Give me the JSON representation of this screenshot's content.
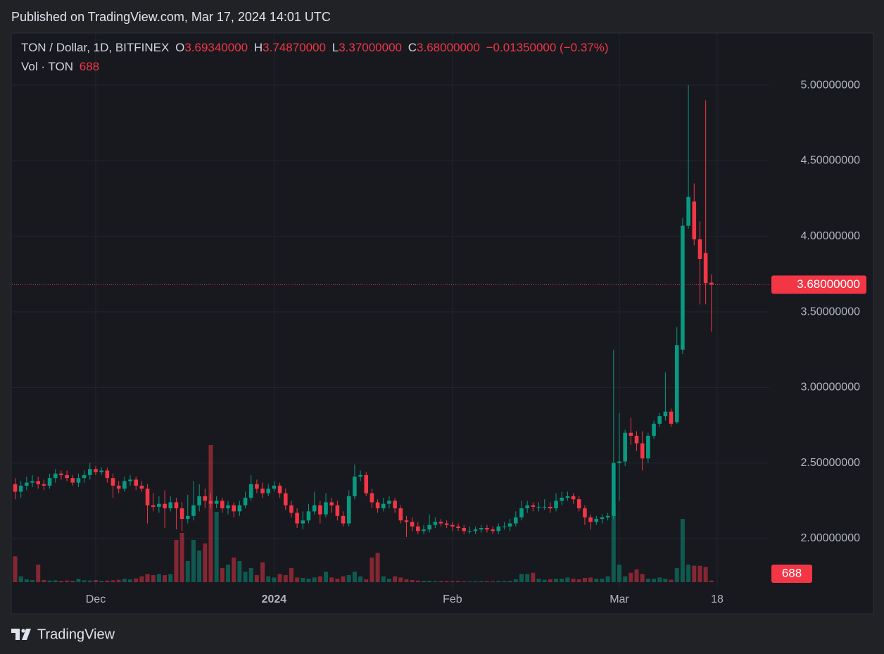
{
  "header": {
    "published": "Published on TradingView.com, Mar 17, 2024 14:01 UTC",
    "symbol": "TON / Dollar, 1D, BITFINEX",
    "ohlc": [
      {
        "key": "O",
        "value": "3.69340000"
      },
      {
        "key": "H",
        "value": "3.74870000"
      },
      {
        "key": "L",
        "value": "3.37000000"
      },
      {
        "key": "C",
        "value": "3.68000000"
      }
    ],
    "change": "−0.01350000 (−0.37%)",
    "volume_label": "Vol · TON"
  },
  "chart_data": {
    "type": "candlestick",
    "categories": [
      null,
      null,
      null,
      null,
      null,
      null,
      null,
      null,
      null,
      null,
      null,
      null,
      null,
      null,
      "Dec",
      null,
      null,
      null,
      null,
      null,
      null,
      null,
      null,
      null,
      null,
      null,
      null,
      null,
      null,
      null,
      null,
      null,
      null,
      null,
      null,
      null,
      null,
      null,
      null,
      null,
      null,
      null,
      null,
      null,
      null,
      "2024",
      null,
      null,
      null,
      null,
      null,
      null,
      null,
      null,
      null,
      null,
      null,
      null,
      null,
      null,
      null,
      null,
      null,
      null,
      null,
      null,
      null,
      null,
      null,
      null,
      null,
      null,
      null,
      null,
      null,
      null,
      "Feb",
      null,
      null,
      null,
      null,
      null,
      null,
      null,
      null,
      null,
      null,
      null,
      null,
      null,
      null,
      null,
      null,
      null,
      null,
      null,
      null,
      null,
      null,
      null,
      null,
      null,
      null,
      null,
      null,
      "Mar",
      null,
      null,
      null,
      null,
      null,
      null,
      null,
      null,
      null,
      null,
      null,
      null,
      null,
      null,
      null,
      null,
      "18"
    ],
    "open": [
      2.36,
      2.31,
      2.35,
      2.37,
      2.38,
      2.36,
      2.35,
      2.4,
      2.43,
      2.42,
      2.4,
      2.37,
      2.4,
      2.42,
      2.46,
      2.44,
      2.45,
      2.4,
      2.35,
      2.33,
      2.38,
      2.39,
      2.35,
      2.33,
      2.22,
      2.21,
      2.23,
      2.2,
      2.24,
      2.2,
      2.13,
      2.15,
      2.22,
      2.28,
      2.25,
      2.23,
      2.25,
      2.2,
      2.22,
      2.18,
      2.22,
      2.27,
      2.36,
      2.33,
      2.3,
      2.33,
      2.35,
      2.3,
      2.22,
      2.17,
      2.1,
      2.12,
      2.18,
      2.22,
      2.16,
      2.24,
      2.22,
      2.15,
      2.1,
      2.28,
      2.41,
      2.42,
      2.3,
      2.24,
      2.2,
      2.23,
      2.25,
      2.2,
      2.12,
      2.11,
      2.08,
      2.05,
      2.06,
      2.09,
      2.11,
      2.1,
      2.09,
      2.08,
      2.07,
      2.05,
      2.05,
      2.06,
      2.07,
      2.06,
      2.05,
      2.08,
      2.08,
      2.1,
      2.14,
      2.2,
      2.22,
      2.21,
      2.21,
      2.21,
      2.2,
      2.25,
      2.27,
      2.28,
      2.26,
      2.2,
      2.14,
      2.11,
      2.13,
      2.14,
      2.15,
      2.5,
      2.51,
      2.7,
      2.68,
      2.63,
      2.53,
      2.68,
      2.76,
      2.81,
      2.84,
      2.77,
      3.25,
      4.07,
      4.23,
      3.98,
      3.89,
      3.6934,
      null
    ],
    "high": [
      2.4,
      2.38,
      2.41,
      2.42,
      2.41,
      2.39,
      2.43,
      2.46,
      2.45,
      2.45,
      2.42,
      2.43,
      2.45,
      2.5,
      2.48,
      2.47,
      2.47,
      2.43,
      2.38,
      2.41,
      2.42,
      2.41,
      2.38,
      2.36,
      2.3,
      2.28,
      2.32,
      2.28,
      2.27,
      2.24,
      2.29,
      2.38,
      2.36,
      2.33,
      2.3,
      2.28,
      2.27,
      2.25,
      2.24,
      2.25,
      2.31,
      2.42,
      2.39,
      2.37,
      2.36,
      2.38,
      2.37,
      2.33,
      2.25,
      2.2,
      2.18,
      2.23,
      2.31,
      2.25,
      2.3,
      2.27,
      2.25,
      2.18,
      2.32,
      2.49,
      2.45,
      2.44,
      2.33,
      2.26,
      2.27,
      2.28,
      2.27,
      2.22,
      2.15,
      2.14,
      2.11,
      2.09,
      2.16,
      2.14,
      2.13,
      2.12,
      2.11,
      2.1,
      2.09,
      2.08,
      2.08,
      2.09,
      2.09,
      2.08,
      2.1,
      2.11,
      2.13,
      2.18,
      2.25,
      2.25,
      2.24,
      2.24,
      2.26,
      2.24,
      2.3,
      2.31,
      2.31,
      2.3,
      2.28,
      2.22,
      2.16,
      2.15,
      2.16,
      2.17,
      3.25,
      2.83,
      2.72,
      2.8,
      2.71,
      2.71,
      2.7,
      2.78,
      2.83,
      3.1,
      2.86,
      3.4,
      4.12,
      5.0,
      4.35,
      4.1,
      4.9,
      3.7487,
      null
    ],
    "low": [
      2.26,
      2.27,
      2.32,
      2.34,
      2.33,
      2.32,
      2.33,
      2.37,
      2.39,
      2.38,
      2.35,
      2.34,
      2.37,
      2.39,
      2.42,
      2.42,
      2.37,
      2.27,
      2.3,
      2.31,
      2.35,
      2.32,
      2.31,
      2.1,
      2.18,
      2.17,
      2.07,
      2.18,
      2.06,
      2.05,
      2.1,
      2.12,
      2.18,
      2.2,
      2.2,
      2.2,
      2.17,
      2.16,
      2.14,
      2.15,
      2.2,
      2.25,
      2.3,
      2.27,
      2.28,
      2.31,
      2.27,
      2.19,
      2.14,
      2.07,
      2.06,
      2.1,
      2.16,
      2.1,
      2.14,
      2.17,
      2.12,
      2.08,
      2.08,
      2.26,
      2.38,
      2.28,
      2.2,
      2.17,
      2.18,
      2.2,
      2.17,
      2.1,
      2.01,
      2.05,
      2.03,
      2.03,
      2.04,
      2.07,
      2.08,
      2.07,
      2.05,
      2.05,
      2.03,
      2.03,
      2.03,
      2.04,
      2.04,
      2.03,
      2.03,
      2.06,
      2.05,
      2.08,
      2.12,
      2.17,
      2.18,
      2.18,
      2.19,
      2.17,
      2.18,
      2.22,
      2.25,
      2.23,
      2.18,
      2.09,
      2.06,
      2.09,
      2.1,
      2.12,
      2.13,
      2.25,
      2.48,
      2.62,
      2.58,
      2.45,
      2.5,
      2.66,
      2.74,
      2.78,
      2.74,
      2.76,
      3.22,
      4.05,
      3.94,
      3.55,
      3.55,
      3.37,
      null
    ],
    "close": [
      2.31,
      2.35,
      2.37,
      2.38,
      2.36,
      2.35,
      2.4,
      2.43,
      2.42,
      2.4,
      2.37,
      2.4,
      2.42,
      2.46,
      2.44,
      2.45,
      2.4,
      2.35,
      2.33,
      2.38,
      2.39,
      2.35,
      2.33,
      2.22,
      2.21,
      2.23,
      2.2,
      2.24,
      2.2,
      2.13,
      2.15,
      2.22,
      2.28,
      2.25,
      2.23,
      2.25,
      2.2,
      2.22,
      2.18,
      2.22,
      2.27,
      2.36,
      2.33,
      2.3,
      2.33,
      2.35,
      2.3,
      2.22,
      2.17,
      2.1,
      2.12,
      2.18,
      2.22,
      2.16,
      2.24,
      2.22,
      2.15,
      2.1,
      2.28,
      2.41,
      2.42,
      2.3,
      2.24,
      2.2,
      2.23,
      2.25,
      2.2,
      2.12,
      2.11,
      2.08,
      2.05,
      2.06,
      2.09,
      2.11,
      2.1,
      2.09,
      2.08,
      2.07,
      2.05,
      2.05,
      2.06,
      2.07,
      2.06,
      2.05,
      2.08,
      2.08,
      2.1,
      2.14,
      2.2,
      2.22,
      2.21,
      2.21,
      2.21,
      2.2,
      2.25,
      2.27,
      2.28,
      2.26,
      2.2,
      2.14,
      2.11,
      2.13,
      2.14,
      2.15,
      2.5,
      2.51,
      2.7,
      2.68,
      2.63,
      2.53,
      2.68,
      2.76,
      2.81,
      2.84,
      2.76,
      3.28,
      4.07,
      4.26,
      3.98,
      3.85,
      3.69,
      3.68,
      null
    ],
    "volume": [
      11000,
      2500,
      1200,
      900,
      7500,
      900,
      700,
      800,
      600,
      700,
      600,
      1500,
      800,
      700,
      900,
      600,
      700,
      800,
      1000,
      1500,
      1200,
      1600,
      2500,
      3500,
      3000,
      3500,
      3000,
      3500,
      18000,
      21000,
      9000,
      18000,
      13500,
      16500,
      58500,
      30000,
      6000,
      7500,
      10500,
      9000,
      4500,
      6000,
      3000,
      8500,
      2500,
      2000,
      3500,
      3000,
      6000,
      2000,
      1800,
      1500,
      2000,
      2500,
      4500,
      2000,
      1500,
      2500,
      3000,
      4500,
      2500,
      1200,
      10500,
      12500,
      2500,
      1500,
      2500,
      2000,
      1200,
      900,
      700,
      600,
      600,
      500,
      500,
      500,
      500,
      500,
      400,
      400,
      400,
      500,
      400,
      400,
      500,
      500,
      600,
      1200,
      3500,
      3500,
      4000,
      1500,
      1000,
      1200,
      1500,
      1500,
      2000,
      1500,
      1200,
      1800,
      2000,
      1500,
      1500,
      2500,
      33000,
      7500,
      2500,
      4000,
      5500,
      3500,
      1500,
      1500,
      2000,
      1500,
      1000,
      6000,
      27000,
      7500,
      7000,
      7000,
      6500,
      688,
      null
    ],
    "ylim": [
      1.66,
      5.345
    ],
    "yticks": [
      {
        "value": 2,
        "label": "2.00000000"
      },
      {
        "value": 2.5,
        "label": "2.50000000"
      },
      {
        "value": 3,
        "label": "3.00000000"
      },
      {
        "value": 3.5,
        "label": "3.50000000"
      },
      {
        "value": 4,
        "label": "4.00000000"
      },
      {
        "value": 4.5,
        "label": "4.50000000"
      },
      {
        "value": 5,
        "label": "5.00000000"
      }
    ],
    "volume_ylim": [
      0,
      60000
    ],
    "last_price": {
      "value": 3.68,
      "label": "3.68000000"
    },
    "up_color": "#089981",
    "down_color": "#f23645",
    "grid": true
  },
  "footer": {
    "brand": "TradingView"
  }
}
